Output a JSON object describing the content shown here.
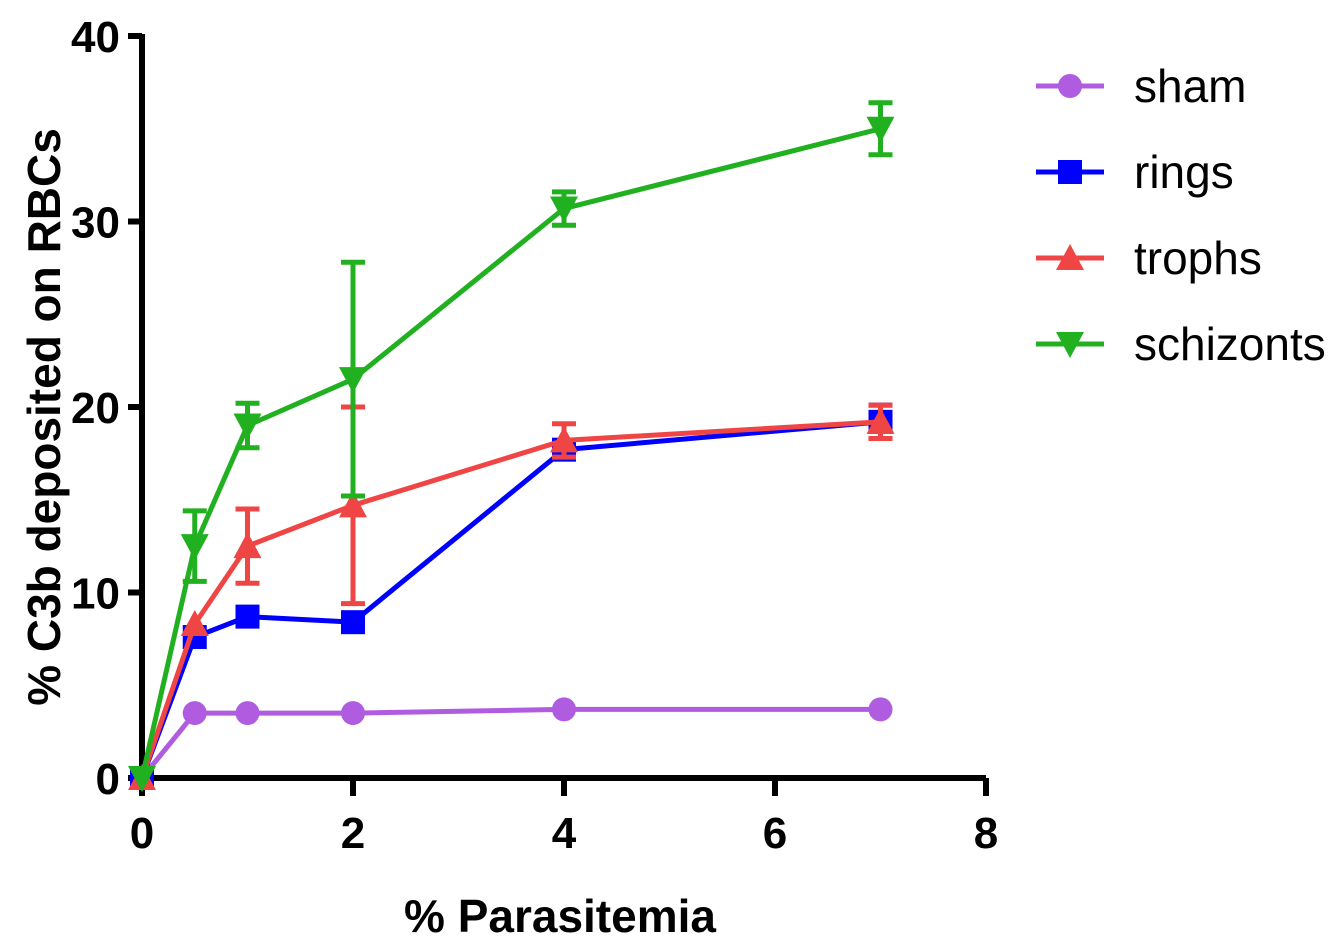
{
  "chart_data": {
    "type": "line",
    "xlabel": "% Parasitemia",
    "ylabel": "% C3b deposited on RBCs",
    "xlim": [
      0,
      8
    ],
    "ylim": [
      0,
      40
    ],
    "xticks": [
      "0",
      "2",
      "4",
      "6",
      "8"
    ],
    "yticks": [
      "0",
      "10",
      "20",
      "30",
      "40"
    ],
    "legend_position": "top-right",
    "series": [
      {
        "name": "sham",
        "color": "#b05ce0",
        "marker": "circle",
        "points": [
          {
            "x": 0,
            "y": 0
          },
          {
            "x": 0.5,
            "y": 3.5
          },
          {
            "x": 1,
            "y": 3.5
          },
          {
            "x": 2,
            "y": 3.5
          },
          {
            "x": 4,
            "y": 3.7
          },
          {
            "x": 7,
            "y": 3.7
          }
        ]
      },
      {
        "name": "rings",
        "color": "#0000ff",
        "marker": "square",
        "points": [
          {
            "x": 0,
            "y": 0
          },
          {
            "x": 0.5,
            "y": 7.6
          },
          {
            "x": 1,
            "y": 8.7
          },
          {
            "x": 2,
            "y": 8.4
          },
          {
            "x": 4,
            "y": 17.7
          },
          {
            "x": 7,
            "y": 19.2,
            "err": 0.9
          }
        ]
      },
      {
        "name": "trophs",
        "color": "#f04545",
        "marker": "triangle-up",
        "points": [
          {
            "x": 0,
            "y": 0
          },
          {
            "x": 0.5,
            "y": 8.3
          },
          {
            "x": 1,
            "y": 12.5,
            "err": 2.0
          },
          {
            "x": 2,
            "y": 14.7,
            "err": 5.3
          },
          {
            "x": 4,
            "y": 18.2,
            "err": 0.9
          },
          {
            "x": 7,
            "y": 19.2,
            "err": 0.9
          }
        ]
      },
      {
        "name": "schizonts",
        "color": "#20b020",
        "marker": "triangle-down",
        "points": [
          {
            "x": 0,
            "y": 0
          },
          {
            "x": 0.5,
            "y": 12.5,
            "err": 1.9
          },
          {
            "x": 1,
            "y": 19.0,
            "err": 1.2
          },
          {
            "x": 2,
            "y": 21.5,
            "err": 6.3
          },
          {
            "x": 4,
            "y": 30.7,
            "err": 0.9
          },
          {
            "x": 7,
            "y": 35.0,
            "err": 1.4
          }
        ]
      }
    ]
  }
}
